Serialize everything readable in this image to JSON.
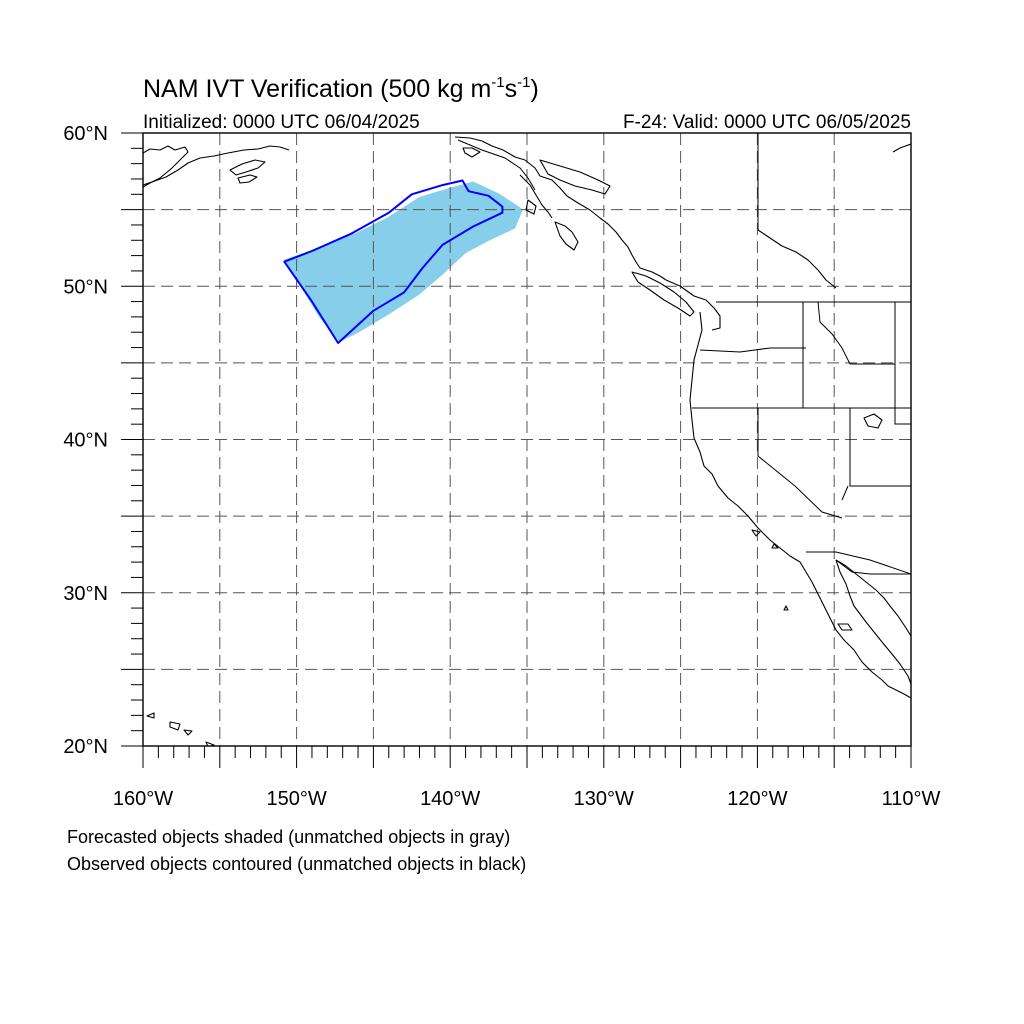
{
  "title": {
    "main": "NAM IVT Verification (500 kg m",
    "sup1": "-1",
    "mid": "s",
    "sup2": "-1",
    "end": ")"
  },
  "subtitle": {
    "left": "Initialized: 0000 UTC 06/04/2025",
    "right": "F-24: Valid: 0000 UTC 06/05/2025"
  },
  "map": {
    "lon_range": [
      -160,
      -110
    ],
    "lat_range": [
      20,
      60
    ],
    "lon_labels": [
      "160°W",
      "150°W",
      "140°W",
      "130°W",
      "120°W",
      "110°W"
    ],
    "lat_labels": [
      "60°N",
      "50°N",
      "40°N",
      "30°N",
      "20°N"
    ],
    "grid": "dashed, every 5°",
    "colors": {
      "forecast_fill": "#87ceeb",
      "observed_contour": "#0000ff",
      "coastlines": "#000000"
    },
    "forecast_object": {
      "type": "shaded",
      "matched": true,
      "polygon_lonlat": [
        [
          -150.8,
          51.7
        ],
        [
          -148.5,
          52.5
        ],
        [
          -146.0,
          53.5
        ],
        [
          -144.0,
          54.5
        ],
        [
          -142.0,
          55.8
        ],
        [
          -140.0,
          56.4
        ],
        [
          -138.5,
          56.8
        ],
        [
          -136.8,
          56.0
        ],
        [
          -135.3,
          55.0
        ],
        [
          -135.8,
          53.8
        ],
        [
          -137.5,
          53.0
        ],
        [
          -139.0,
          52.2
        ],
        [
          -140.5,
          50.8
        ],
        [
          -142.0,
          49.5
        ],
        [
          -144.0,
          48.2
        ],
        [
          -146.0,
          47.0
        ],
        [
          -147.2,
          46.4
        ],
        [
          -148.5,
          48.0
        ],
        [
          -150.0,
          50.5
        ]
      ]
    },
    "observed_object": {
      "type": "contour",
      "matched": true,
      "polygon_lonlat": [
        [
          -150.8,
          51.6
        ],
        [
          -149.0,
          52.3
        ],
        [
          -146.5,
          53.4
        ],
        [
          -144.0,
          54.8
        ],
        [
          -142.5,
          56.0
        ],
        [
          -140.5,
          56.6
        ],
        [
          -139.2,
          56.9
        ],
        [
          -138.8,
          56.2
        ],
        [
          -137.5,
          55.9
        ],
        [
          -136.6,
          55.2
        ],
        [
          -136.6,
          54.8
        ],
        [
          -138.5,
          53.9
        ],
        [
          -140.5,
          52.7
        ],
        [
          -141.8,
          51.2
        ],
        [
          -143.0,
          49.6
        ],
        [
          -145.0,
          48.4
        ],
        [
          -147.3,
          46.3
        ],
        [
          -149.0,
          49.0
        ]
      ]
    }
  },
  "footnotes": [
    "Forecasted objects shaded (unmatched objects in gray)",
    "Observed objects contoured (unmatched objects in black)"
  ]
}
